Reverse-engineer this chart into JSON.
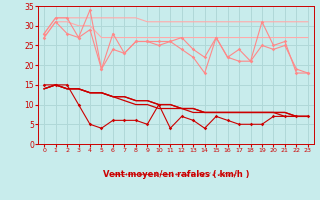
{
  "background_color": "#c8ecec",
  "grid_color": "#b0d8d8",
  "xlabel": "Vent moyen/en rafales ( km/h )",
  "xlabel_color": "#cc0000",
  "tick_color": "#cc0000",
  "xlim": [
    -0.5,
    23.5
  ],
  "ylim": [
    0,
    35
  ],
  "yticks": [
    0,
    5,
    10,
    15,
    20,
    25,
    30,
    35
  ],
  "xticks": [
    0,
    1,
    2,
    3,
    4,
    5,
    6,
    7,
    8,
    9,
    10,
    11,
    12,
    13,
    14,
    15,
    16,
    17,
    18,
    19,
    20,
    21,
    22,
    23
  ],
  "x": [
    0,
    1,
    2,
    3,
    4,
    5,
    6,
    7,
    8,
    9,
    10,
    11,
    12,
    13,
    14,
    15,
    16,
    17,
    18,
    19,
    20,
    21,
    22,
    23
  ],
  "line_upper1_color": "#ffaaaa",
  "line_upper1_y": [
    28,
    32,
    32,
    32,
    32,
    32,
    32,
    32,
    32,
    31,
    31,
    31,
    31,
    31,
    31,
    31,
    31,
    31,
    31,
    31,
    31,
    31,
    31,
    31
  ],
  "line_upper2_color": "#ffaaaa",
  "line_upper2_y": [
    27,
    31,
    31,
    30,
    30,
    27,
    27,
    27,
    27,
    27,
    27,
    27,
    27,
    27,
    27,
    27,
    27,
    27,
    27,
    27,
    27,
    27,
    27,
    27
  ],
  "line_zigzag1_color": "#ff8888",
  "line_zigzag1_y": [
    28,
    32,
    32,
    27,
    34,
    19,
    28,
    23,
    26,
    26,
    26,
    26,
    27,
    24,
    22,
    27,
    22,
    24,
    21,
    31,
    25,
    26,
    18,
    18
  ],
  "line_zigzag2_color": "#ff8888",
  "line_zigzag2_y": [
    27,
    31,
    28,
    27,
    29,
    19,
    24,
    23,
    26,
    26,
    25,
    26,
    24,
    22,
    18,
    27,
    22,
    21,
    21,
    25,
    24,
    25,
    19,
    18
  ],
  "line_lower1_color": "#cc0000",
  "line_lower1_y": [
    14,
    15,
    14,
    14,
    13,
    13,
    12,
    12,
    11,
    11,
    10,
    10,
    9,
    9,
    8,
    8,
    8,
    8,
    8,
    8,
    8,
    8,
    7,
    7
  ],
  "line_lower2_color": "#cc0000",
  "line_lower2_y": [
    14,
    15,
    14,
    14,
    13,
    13,
    12,
    12,
    11,
    11,
    10,
    10,
    9,
    9,
    8,
    8,
    8,
    8,
    8,
    8,
    8,
    8,
    7,
    7
  ],
  "line_lower3_color": "#cc0000",
  "line_lower3_y": [
    14,
    15,
    14,
    14,
    13,
    13,
    12,
    11,
    10,
    10,
    9,
    9,
    9,
    8,
    8,
    8,
    8,
    8,
    8,
    8,
    8,
    7,
    7,
    7
  ],
  "line_zigzag3_color": "#cc0000",
  "line_zigzag3_y": [
    15,
    15,
    15,
    10,
    5,
    4,
    6,
    6,
    6,
    5,
    10,
    4,
    7,
    6,
    4,
    7,
    6,
    5,
    5,
    5,
    7,
    7,
    7,
    7
  ],
  "arrow_symbols": [
    "←",
    "←",
    "→",
    "←",
    "←",
    "←",
    "←",
    "←",
    "↓",
    "←",
    "←",
    "↓",
    "←",
    "↙",
    "↙",
    "←",
    "↙",
    "↙",
    "↙",
    "↙",
    "↙",
    "↙",
    "↙",
    "↙"
  ]
}
